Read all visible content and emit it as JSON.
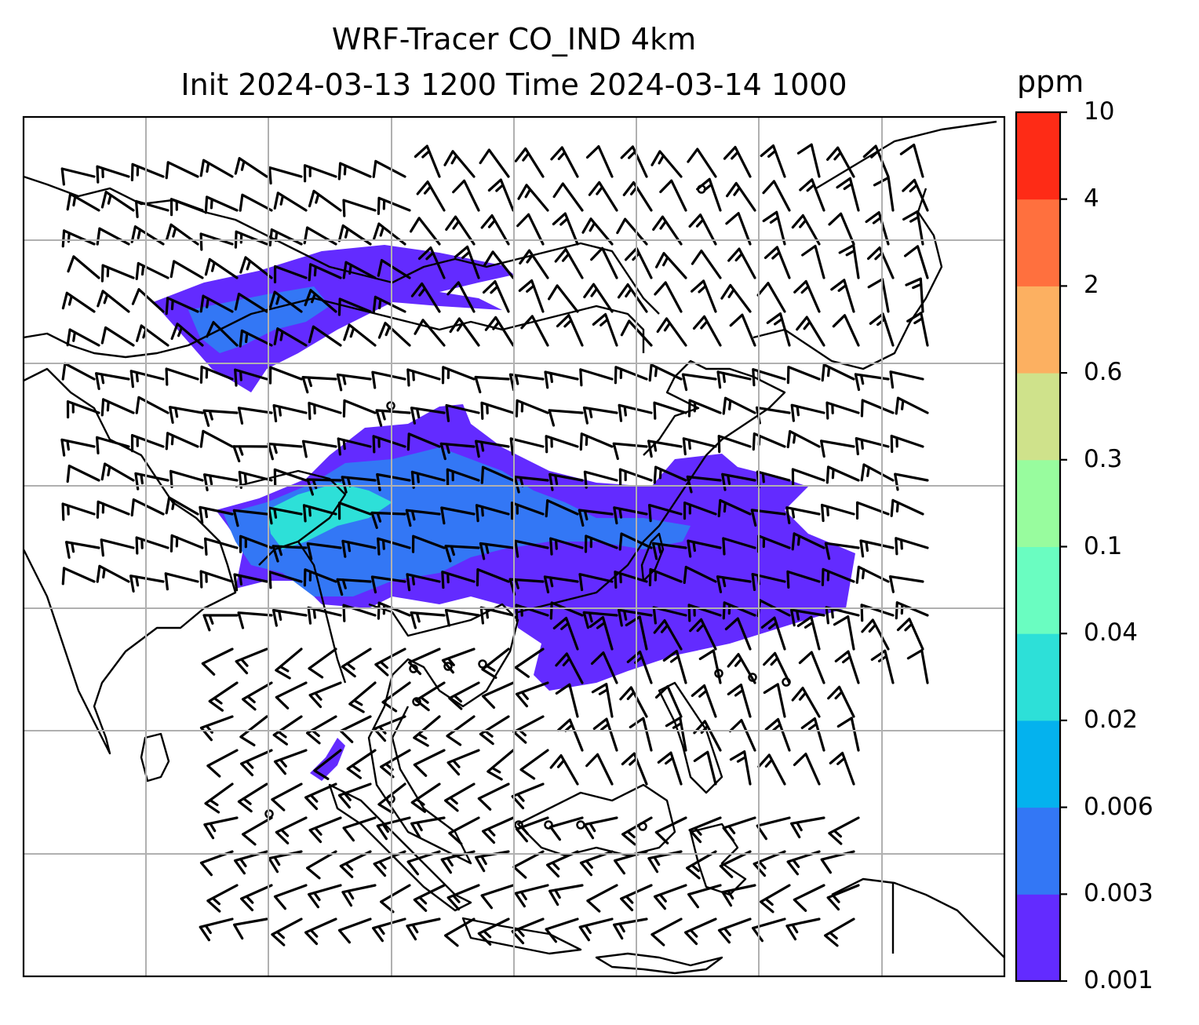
{
  "title": {
    "line1": "WRF-Tracer CO_IND 4km",
    "line2": "Init 2024-03-13 1200 Time 2024-03-14 1000"
  },
  "colorbar": {
    "unit": "ppm",
    "levels": [
      "0.001",
      "0.003",
      "0.006",
      "0.02",
      "0.04",
      "0.1",
      "0.3",
      "0.6",
      "2",
      "4",
      "10"
    ],
    "colors": [
      "#632bff",
      "#3377f5",
      "#04b2ee",
      "#2de0d8",
      "#6afdc1",
      "#98fc9e",
      "#cfe28b",
      "#fcb061",
      "#ff703e",
      "#fe2b16"
    ]
  },
  "map": {
    "grid": true,
    "coastline_color": "#000000",
    "gridline_color": "#b0b0b0",
    "overlay": "wind-barbs"
  }
}
